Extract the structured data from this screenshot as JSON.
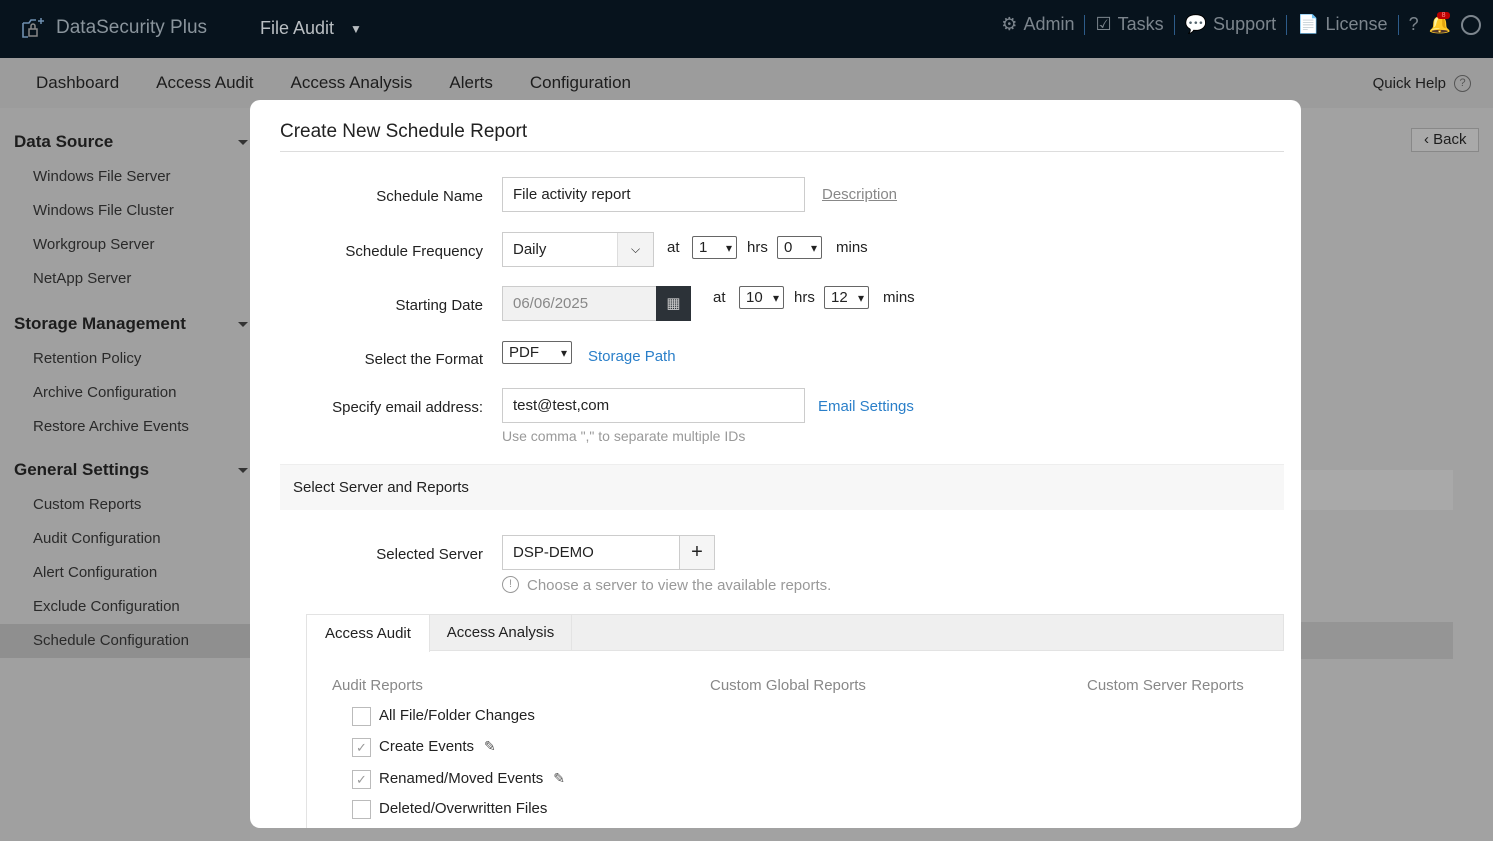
{
  "header": {
    "app_name": "DataSecurity Plus",
    "module": "File Audit",
    "links": [
      {
        "label": "Admin",
        "icon": "gear-icon"
      },
      {
        "label": "Tasks",
        "icon": "tasks-icon"
      },
      {
        "label": "Support",
        "icon": "chat-icon"
      },
      {
        "label": "License",
        "icon": "license-icon"
      }
    ],
    "help": "?",
    "notification_count": "8"
  },
  "nav": {
    "items": [
      "Dashboard",
      "Access Audit",
      "Access Analysis",
      "Alerts",
      "Configuration"
    ],
    "quick_help": "Quick Help"
  },
  "sidebar": {
    "sections": [
      {
        "title": "Data Source",
        "items": [
          "Windows File Server",
          "Windows File Cluster",
          "Workgroup Server",
          "NetApp Server"
        ]
      },
      {
        "title": "Storage Management",
        "items": [
          "Retention Policy",
          "Archive Configuration",
          "Restore Archive Events"
        ]
      },
      {
        "title": "General Settings",
        "items": [
          "Custom Reports",
          "Audit Configuration",
          "Alert Configuration",
          "Exclude Configuration",
          "Schedule Configuration"
        ]
      }
    ],
    "selected": "Schedule Configuration"
  },
  "back_label": "Back",
  "modal": {
    "title": "Create New Schedule Report",
    "schedule_name": {
      "label": "Schedule Name",
      "value": "File activity report",
      "description_link": "Description"
    },
    "frequency": {
      "label": "Schedule Frequency",
      "value": "Daily",
      "at": "at",
      "hrs_value": "1",
      "hrs": "hrs",
      "mins_value": "0",
      "mins": "mins"
    },
    "starting_date": {
      "label": "Starting Date",
      "value": "06/06/2025",
      "at": "at",
      "hrs_value": "10",
      "hrs": "hrs",
      "mins_value": "12",
      "mins": "mins"
    },
    "format": {
      "label": "Select the Format",
      "value": "PDF",
      "storage_link": "Storage Path"
    },
    "email": {
      "label": "Specify email address:",
      "value": "test@test,com",
      "settings_link": "Email Settings",
      "hint": "Use comma \",\" to separate multiple IDs"
    },
    "section_title": "Select Server and Reports",
    "server": {
      "label": "Selected Server",
      "value": "DSP-DEMO",
      "add": "+",
      "hint": "Choose a server to view the available reports."
    },
    "tabs": [
      "Access Audit",
      "Access Analysis"
    ],
    "columns": [
      "Audit Reports",
      "Custom Global Reports",
      "Custom Server Reports"
    ],
    "reports": [
      {
        "label": "All File/Folder Changes",
        "checked": false,
        "editable": false
      },
      {
        "label": "Create Events",
        "checked": true,
        "editable": true
      },
      {
        "label": "Renamed/Moved Events",
        "checked": true,
        "editable": true
      },
      {
        "label": "Deleted/Overwritten Files",
        "checked": false,
        "editable": false
      }
    ]
  }
}
